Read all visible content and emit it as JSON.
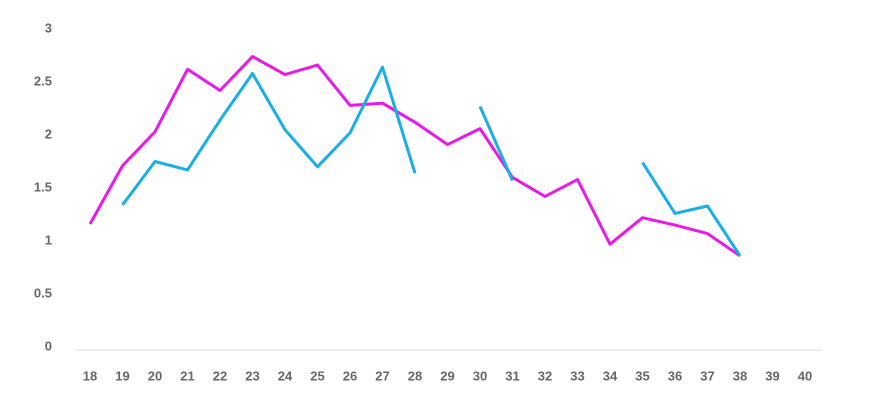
{
  "chart_data": {
    "type": "line",
    "categories": [
      "18",
      "19",
      "20",
      "21",
      "22",
      "23",
      "24",
      "25",
      "26",
      "27",
      "28",
      "29",
      "30",
      "31",
      "32",
      "33",
      "34",
      "35",
      "36",
      "37",
      "38",
      "39",
      "40"
    ],
    "series": [
      {
        "color": "#e81ae8",
        "values": [
          1.16,
          1.71,
          2.03,
          2.62,
          2.42,
          2.74,
          2.57,
          2.66,
          2.28,
          2.3,
          2.12,
          1.91,
          2.06,
          1.6,
          1.42,
          1.58,
          0.97,
          1.22,
          1.15,
          1.07,
          0.86,
          null,
          null
        ]
      },
      {
        "color": "#1aaee6",
        "values": [
          null,
          1.34,
          1.75,
          1.67,
          2.14,
          2.58,
          2.05,
          1.7,
          2.02,
          2.64,
          1.64,
          null,
          2.27,
          1.57,
          null,
          null,
          null,
          1.74,
          1.26,
          1.33,
          0.86,
          null,
          null
        ]
      }
    ],
    "ylim": [
      0,
      3
    ],
    "yticks": [
      0,
      0.5,
      1,
      1.5,
      2,
      2.5,
      3
    ],
    "grid": false
  }
}
